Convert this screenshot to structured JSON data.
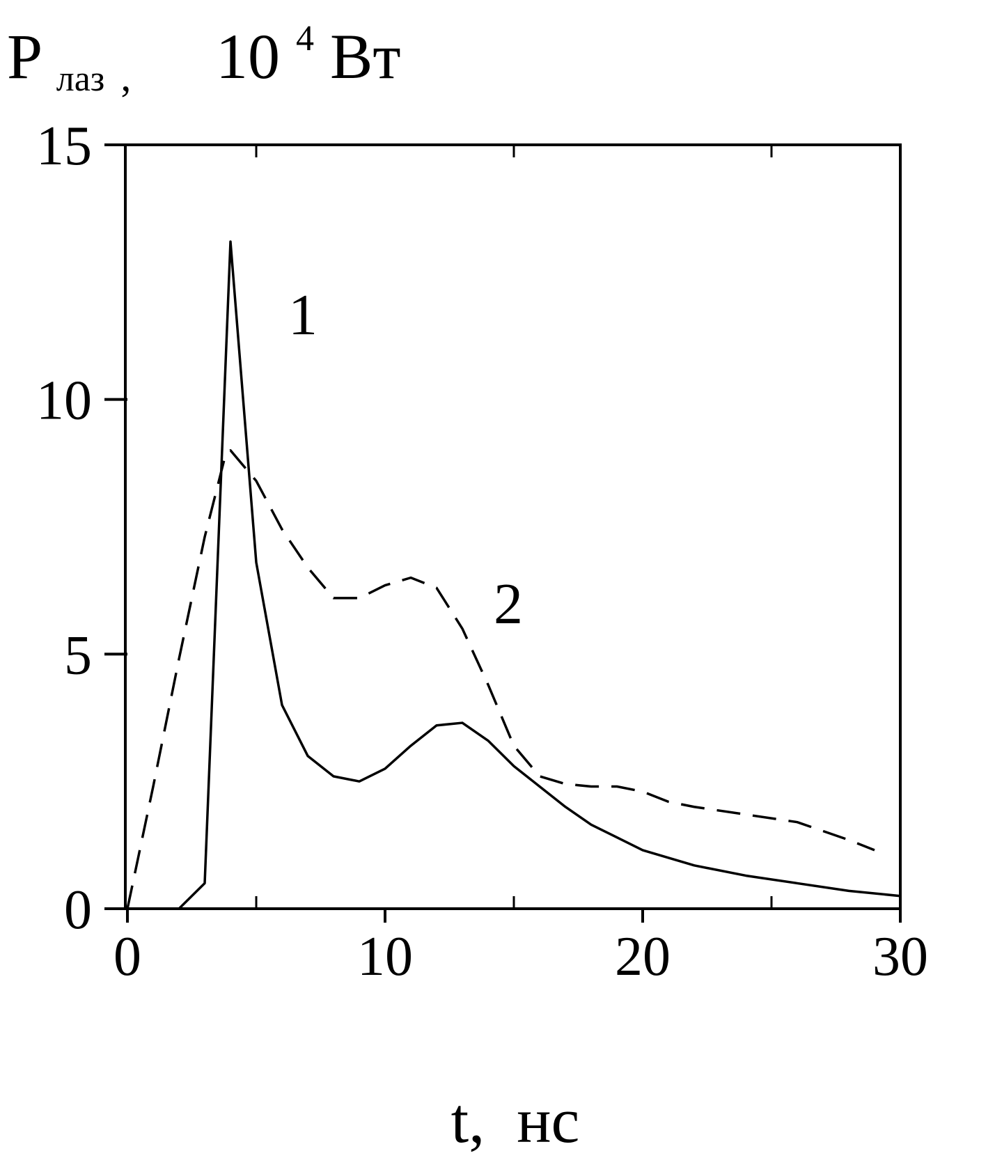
{
  "chart_data": {
    "type": "line",
    "ylabel": {
      "symbol": "P",
      "subscript": "лаз",
      "separator": ",",
      "unit_base": "10",
      "unit_exponent": "4",
      "unit": "Вт"
    },
    "xlabel": "t,  нс",
    "xlim": [
      0,
      30
    ],
    "xticks": [
      0,
      10,
      20,
      30
    ],
    "xminorticks": [
      5,
      15,
      25
    ],
    "ylim": [
      0,
      15
    ],
    "yticks": [
      0,
      5,
      10,
      15
    ],
    "series": [
      {
        "name": "1",
        "color": "#000000",
        "dash": false,
        "x": [
          0,
          2,
          3,
          4,
          5,
          6,
          7,
          8,
          9,
          10,
          11,
          12,
          13,
          14,
          15,
          16,
          17,
          18,
          19,
          20,
          22,
          24,
          26,
          28,
          30
        ],
        "values": [
          0,
          0,
          0.5,
          13.1,
          6.8,
          4.0,
          3.0,
          2.6,
          2.5,
          2.75,
          3.2,
          3.6,
          3.65,
          3.3,
          2.8,
          2.4,
          2.0,
          1.65,
          1.4,
          1.15,
          0.85,
          0.65,
          0.5,
          0.35,
          0.25
        ]
      },
      {
        "name": "2",
        "color": "#000000",
        "dash": true,
        "x": [
          0,
          1,
          2,
          3,
          3.8,
          4,
          5,
          6,
          7,
          8,
          9,
          10,
          11,
          12,
          13,
          14,
          15,
          16,
          17,
          18,
          19,
          20,
          21,
          22,
          24,
          26,
          28,
          29
        ],
        "values": [
          0,
          2.4,
          4.9,
          7.3,
          8.9,
          9.0,
          8.4,
          7.45,
          6.7,
          6.1,
          6.1,
          6.35,
          6.5,
          6.3,
          5.5,
          4.4,
          3.2,
          2.6,
          2.45,
          2.4,
          2.4,
          2.3,
          2.1,
          2.0,
          1.85,
          1.7,
          1.35,
          1.15
        ]
      }
    ]
  }
}
